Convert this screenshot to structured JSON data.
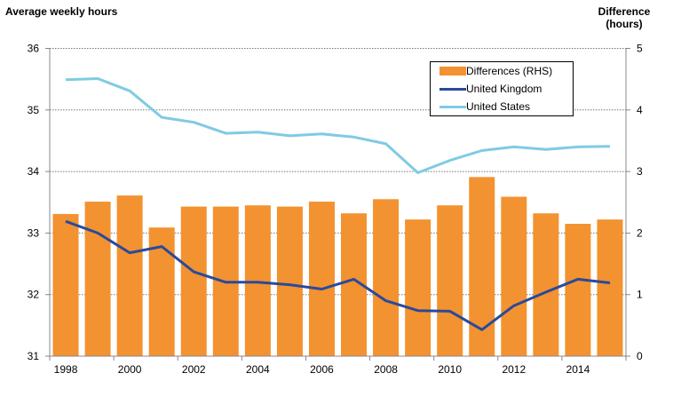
{
  "chart_data": {
    "type": "bar+line",
    "left_axis_label": "Average weekly hours",
    "right_axis_label": "Difference (hours)",
    "left_ylim": [
      31,
      36
    ],
    "right_ylim": [
      0,
      5
    ],
    "left_ticks": [
      "31",
      "32",
      "33",
      "34",
      "35",
      "36"
    ],
    "right_ticks": [
      "0",
      "1",
      "2",
      "3",
      "4",
      "5"
    ],
    "categories": [
      1998,
      1999,
      2000,
      2001,
      2002,
      2003,
      2004,
      2005,
      2006,
      2007,
      2008,
      2009,
      2010,
      2011,
      2012,
      2013,
      2014,
      2015
    ],
    "x_tick_labels": [
      "1998",
      "2000",
      "2002",
      "2004",
      "2006",
      "2008",
      "2010",
      "2012",
      "2014"
    ],
    "grid": "horizontal dotted",
    "legend_position": "top-right",
    "series": [
      {
        "name": "Differences (RHS)",
        "type": "bar",
        "axis": "right",
        "color": "#F39230",
        "values": [
          2.31,
          2.51,
          2.61,
          2.09,
          2.43,
          2.43,
          2.45,
          2.43,
          2.51,
          2.32,
          2.55,
          2.22,
          2.45,
          2.91,
          2.59,
          2.32,
          2.15,
          2.22
        ]
      },
      {
        "name": "United Kingdom",
        "type": "line",
        "axis": "left",
        "color": "#2A4A9A",
        "values": [
          33.19,
          33.0,
          32.68,
          32.78,
          32.37,
          32.2,
          32.2,
          32.16,
          32.09,
          32.25,
          31.9,
          31.74,
          31.73,
          31.43,
          31.82,
          32.04,
          32.25,
          32.19
        ]
      },
      {
        "name": "United States",
        "type": "line",
        "axis": "left",
        "color": "#7FCBE3",
        "values": [
          35.49,
          35.51,
          35.31,
          34.88,
          34.8,
          34.62,
          34.64,
          34.58,
          34.61,
          34.56,
          34.45,
          33.98,
          34.18,
          34.34,
          34.4,
          34.36,
          34.4,
          34.41
        ]
      }
    ]
  }
}
